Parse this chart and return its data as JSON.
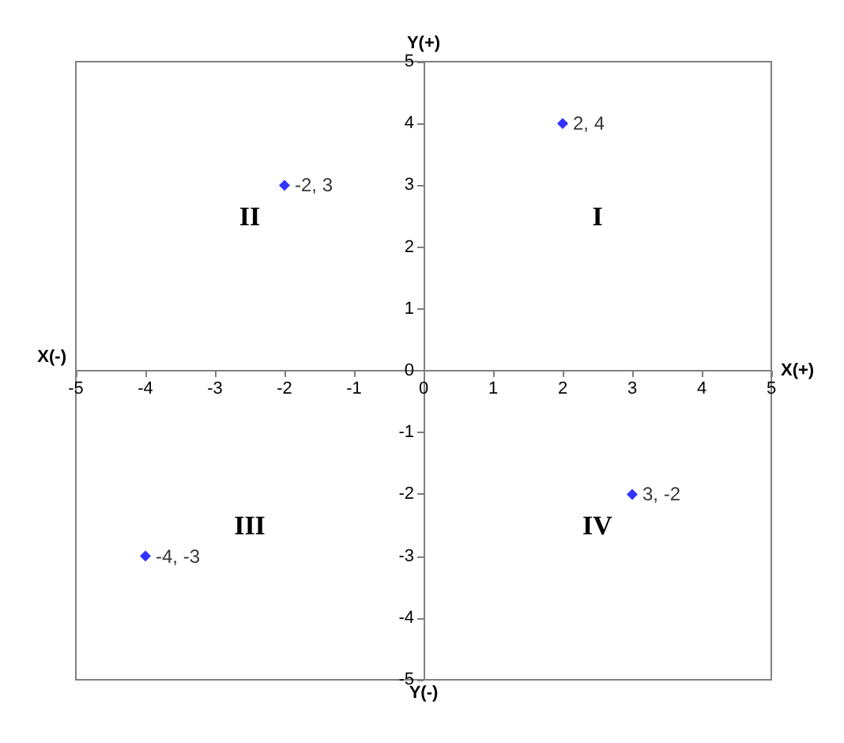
{
  "chart_data": {
    "type": "scatter",
    "xlabel": "X(+)",
    "ylabel": "Y(+)",
    "x": [
      2,
      -2,
      -4,
      3
    ],
    "series": [
      {
        "color": "#0000ff",
        "values": [
          4,
          3,
          -3,
          -2
        ],
        "value_labels": [
          "2, 4",
          "-2, 3",
          "-4, -3",
          "3, -2"
        ]
      }
    ],
    "xlim": [
      -5,
      5
    ],
    "ylim": [
      -5,
      5
    ],
    "xticks": [
      -5,
      -4,
      -3,
      -2,
      -1,
      0,
      1,
      2,
      3,
      4,
      5
    ],
    "yticks": [
      -5,
      -4,
      -3,
      -2,
      -1,
      0,
      1,
      2,
      3,
      4,
      5
    ],
    "annotations": [
      "I",
      "II",
      "III",
      "IV",
      "X(-)",
      "Y(-)"
    ],
    "marker": "diamond"
  }
}
